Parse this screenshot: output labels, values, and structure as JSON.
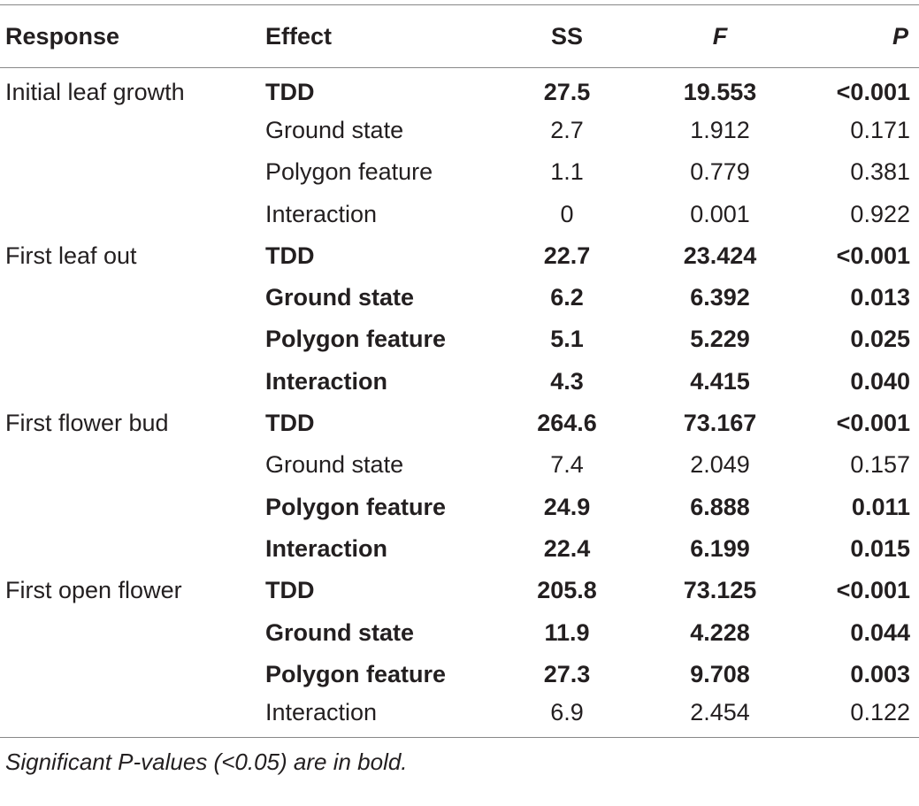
{
  "table": {
    "headers": {
      "response": "Response",
      "effect": "Effect",
      "ss": "SS",
      "f": "F",
      "p": "P"
    },
    "rows": [
      {
        "response": "Initial leaf growth",
        "effect": "TDD",
        "ss": "27.5",
        "f": "19.553",
        "p": "<0.001",
        "bold": true
      },
      {
        "response": "",
        "effect": "Ground state",
        "ss": "2.7",
        "f": "1.912",
        "p": "0.171",
        "bold": false
      },
      {
        "response": "",
        "effect": "Polygon feature",
        "ss": "1.1",
        "f": "0.779",
        "p": "0.381",
        "bold": false
      },
      {
        "response": "",
        "effect": "Interaction",
        "ss": "0",
        "f": "0.001",
        "p": "0.922",
        "bold": false
      },
      {
        "response": "First leaf out",
        "effect": "TDD",
        "ss": "22.7",
        "f": "23.424",
        "p": "<0.001",
        "bold": true
      },
      {
        "response": "",
        "effect": "Ground state",
        "ss": "6.2",
        "f": "6.392",
        "p": "0.013",
        "bold": true
      },
      {
        "response": "",
        "effect": "Polygon feature",
        "ss": "5.1",
        "f": "5.229",
        "p": "0.025",
        "bold": true
      },
      {
        "response": "",
        "effect": "Interaction",
        "ss": "4.3",
        "f": "4.415",
        "p": "0.040",
        "bold": true
      },
      {
        "response": "First flower bud",
        "effect": "TDD",
        "ss": "264.6",
        "f": "73.167",
        "p": "<0.001",
        "bold": true
      },
      {
        "response": "",
        "effect": "Ground state",
        "ss": "7.4",
        "f": "2.049",
        "p": "0.157",
        "bold": false
      },
      {
        "response": "",
        "effect": "Polygon feature",
        "ss": "24.9",
        "f": "6.888",
        "p": "0.011",
        "bold": true
      },
      {
        "response": "",
        "effect": "Interaction",
        "ss": "22.4",
        "f": "6.199",
        "p": "0.015",
        "bold": true
      },
      {
        "response": "First open flower",
        "effect": "TDD",
        "ss": "205.8",
        "f": "73.125",
        "p": "<0.001",
        "bold": true
      },
      {
        "response": "",
        "effect": "Ground state",
        "ss": "11.9",
        "f": "4.228",
        "p": "0.044",
        "bold": true
      },
      {
        "response": "",
        "effect": "Polygon feature",
        "ss": "27.3",
        "f": "9.708",
        "p": "0.003",
        "bold": true
      },
      {
        "response": "",
        "effect": "Interaction",
        "ss": "6.9",
        "f": "2.454",
        "p": "0.122",
        "bold": false
      }
    ]
  },
  "footnote": "Significant P-values (<0.05) are in bold.",
  "colors": {
    "text": "#231f20",
    "rule": "#888888"
  }
}
